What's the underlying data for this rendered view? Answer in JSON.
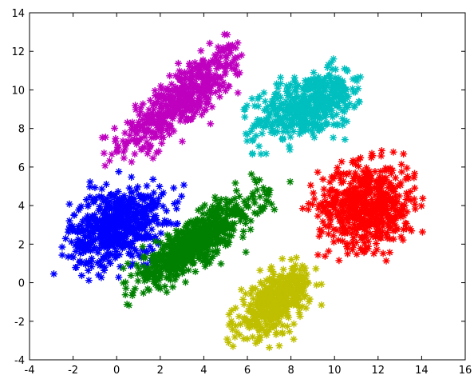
{
  "chart_data": {
    "type": "scatter",
    "marker": "asterisk",
    "title": "",
    "xlabel": "",
    "ylabel": "",
    "xlim": [
      -4,
      16
    ],
    "ylim": [
      -4,
      14
    ],
    "xticks": [
      -4,
      -2,
      0,
      2,
      4,
      6,
      8,
      10,
      12,
      14,
      16
    ],
    "yticks": [
      -4,
      -2,
      0,
      2,
      4,
      6,
      8,
      10,
      12,
      14
    ],
    "grid": false,
    "legend": "none",
    "series": [
      {
        "color": "#bf00bf",
        "center": [
          3.0,
          9.5
        ],
        "cov": [
          [
            2.8,
            2.2
          ],
          [
            2.2,
            2.6
          ]
        ],
        "n": 500,
        "points_range": {
          "x": [
            -1.5,
            5.8
          ],
          "y": [
            6.0,
            13.0
          ]
        }
      },
      {
        "color": "#00bfbf",
        "center": [
          8.8,
          9.2
        ],
        "cov": [
          [
            2.1,
            0.8
          ],
          [
            0.8,
            1.2
          ]
        ],
        "n": 500,
        "points_range": {
          "x": [
            5.8,
            11.2
          ],
          "y": [
            6.5,
            12.0
          ]
        }
      },
      {
        "color": "#ff0000",
        "center": [
          11.5,
          4.0
        ],
        "cov": [
          [
            1.7,
            0.0
          ],
          [
            0.0,
            1.6
          ]
        ],
        "n": 600,
        "points_range": {
          "x": [
            8.3,
            14.2
          ],
          "y": [
            1.0,
            7.0
          ]
        }
      },
      {
        "color": "#0000ff",
        "center": [
          0.0,
          3.0
        ],
        "cov": [
          [
            1.6,
            0.5
          ],
          [
            0.5,
            1.4
          ]
        ],
        "n": 600,
        "points_range": {
          "x": [
            -3.2,
            3.2
          ],
          "y": [
            -1.0,
            6.2
          ]
        }
      },
      {
        "color": "#008000",
        "center": [
          3.5,
          2.0
        ],
        "cov": [
          [
            3.0,
            2.1
          ],
          [
            2.1,
            2.0
          ]
        ],
        "n": 700,
        "points_range": {
          "x": [
            0.3,
            8.5
          ],
          "y": [
            -2.2,
            6.0
          ]
        }
      },
      {
        "color": "#bfbf00",
        "center": [
          7.3,
          -1.0
        ],
        "cov": [
          [
            0.9,
            0.55
          ],
          [
            0.55,
            1.0
          ]
        ],
        "n": 450,
        "points_range": {
          "x": [
            5.0,
            9.8
          ],
          "y": [
            -3.5,
            1.5
          ]
        }
      }
    ]
  }
}
